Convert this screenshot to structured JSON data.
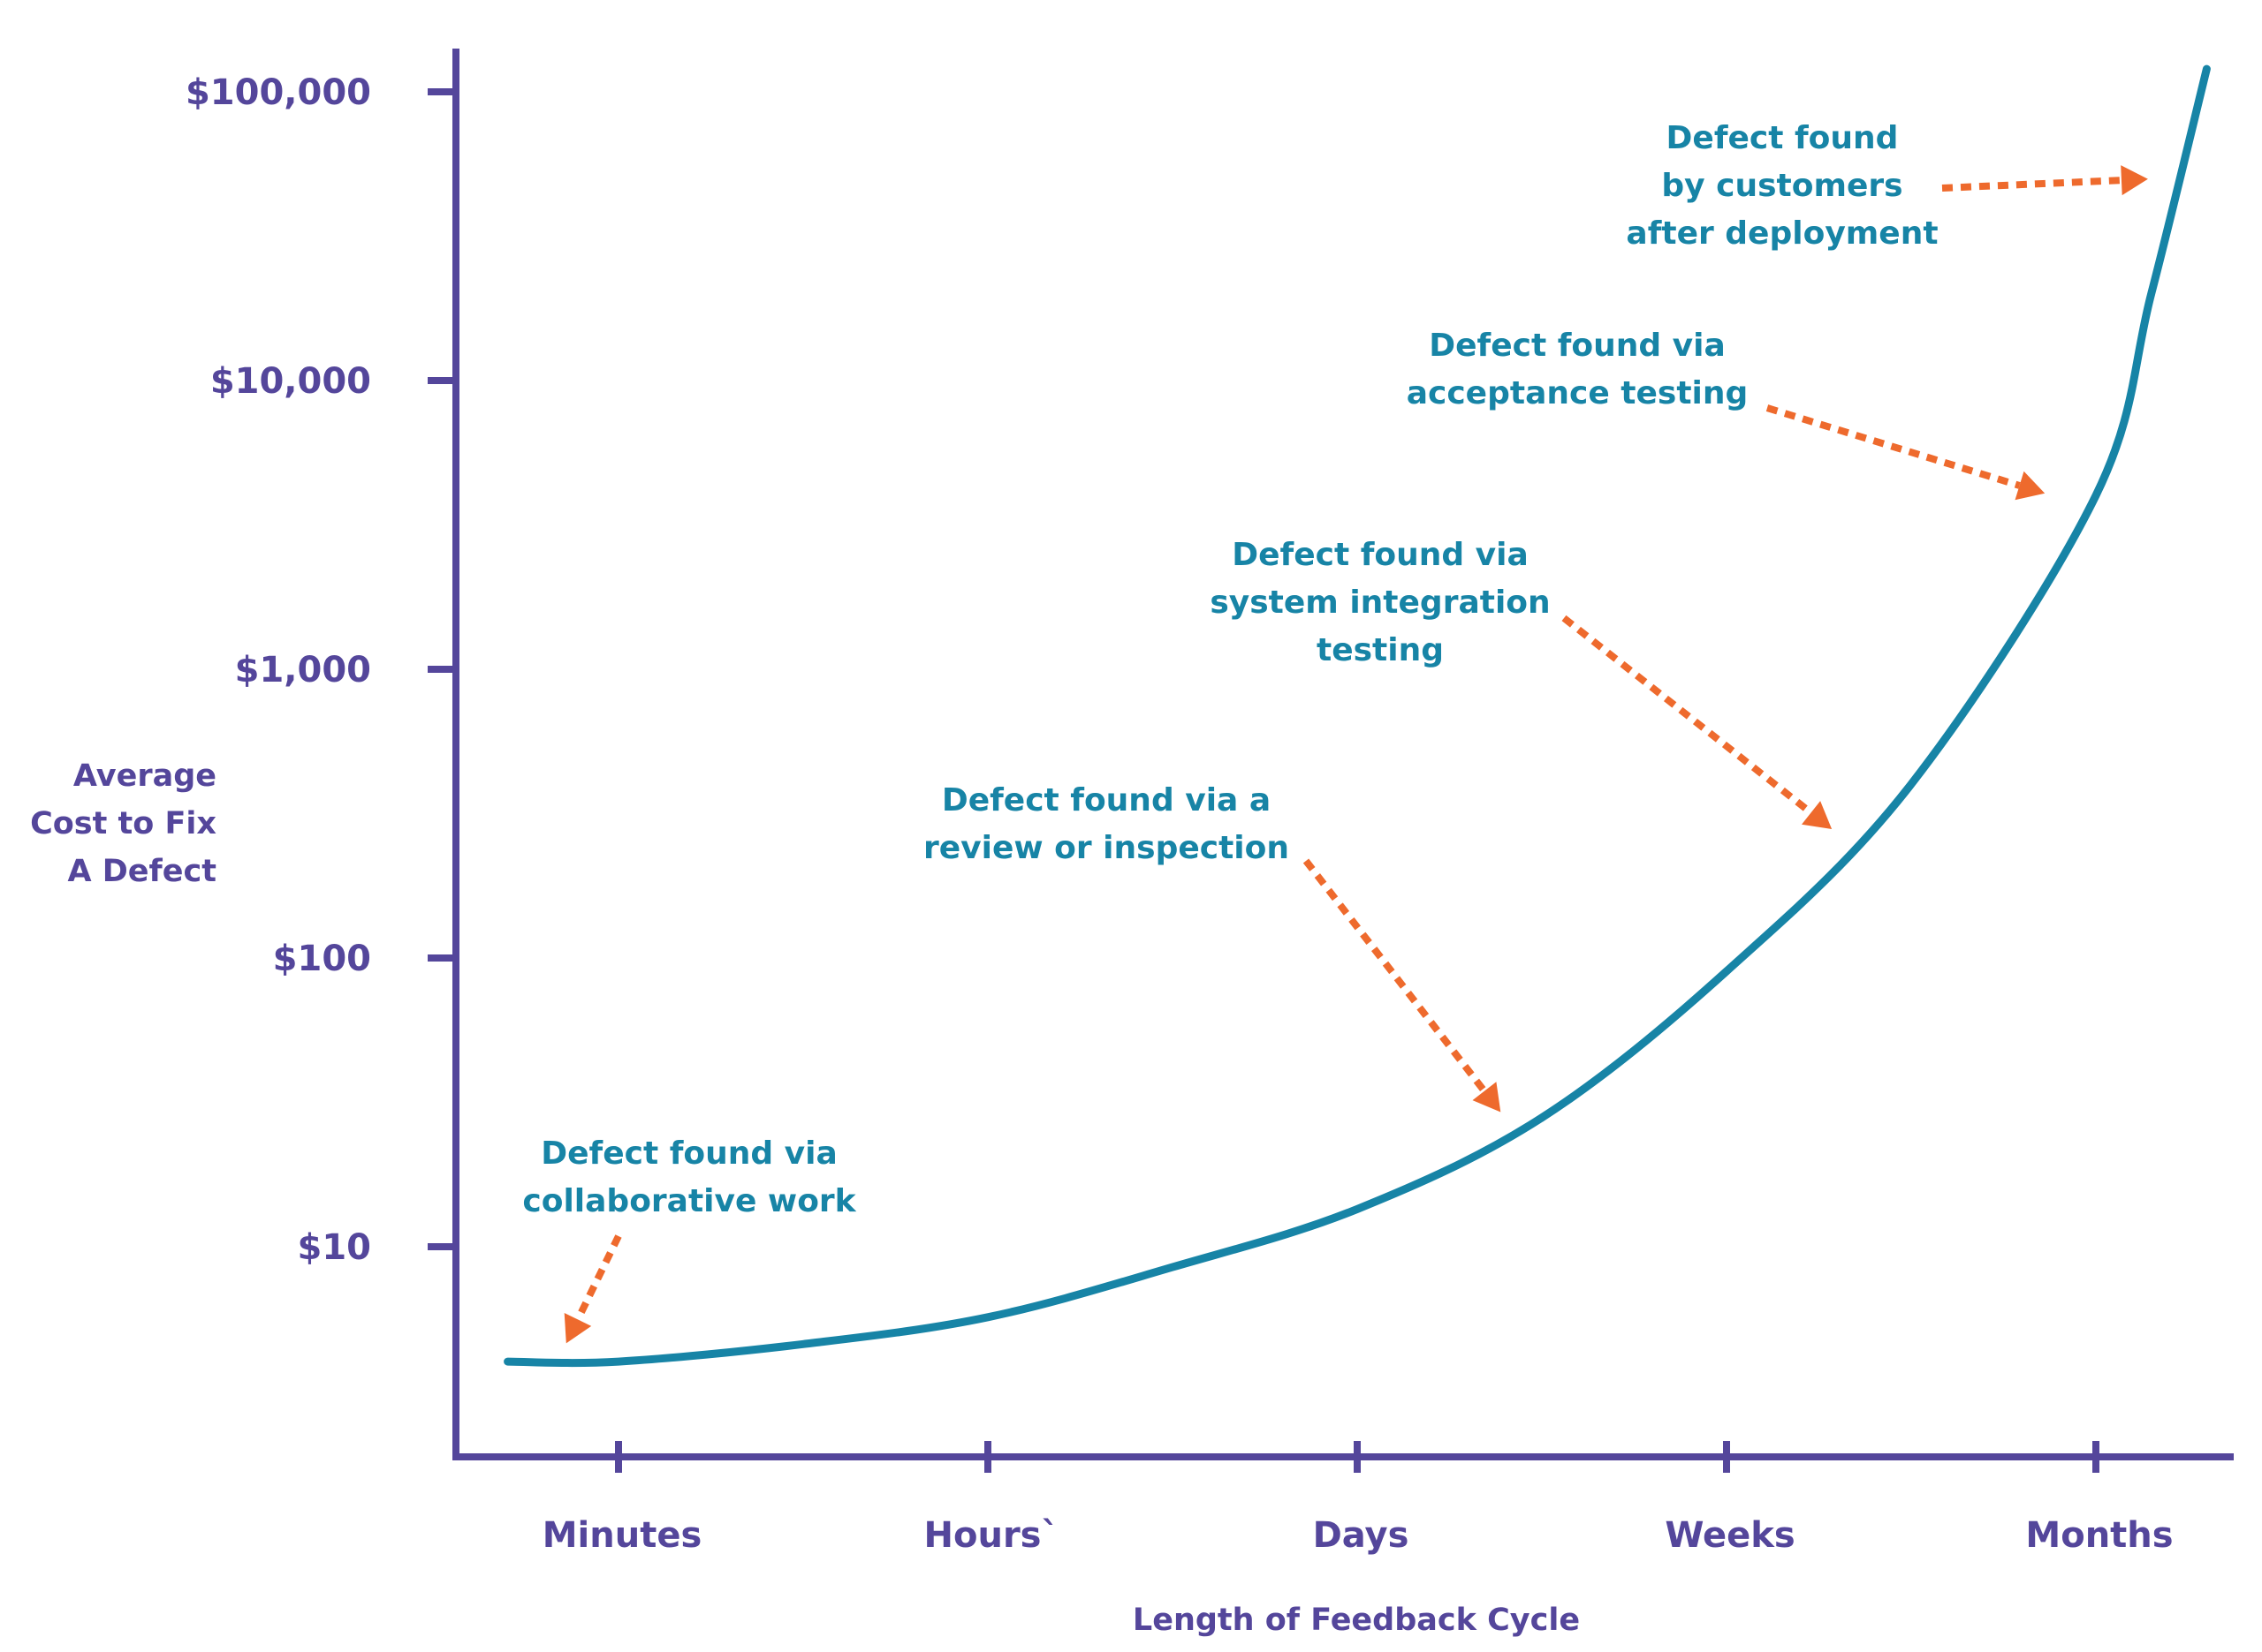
{
  "chart_data": {
    "type": "line",
    "title": "",
    "xlabel": "Length of Feedback Cycle",
    "ylabel_lines": [
      "Average",
      "Cost to Fix",
      "A Defect"
    ],
    "yscale": "log",
    "ylim": [
      2.5,
      130000
    ],
    "x_categories": [
      "Minutes",
      "Hours`",
      "Days",
      "Weeks",
      "Months"
    ],
    "y_ticks": [
      {
        "value": 10,
        "label": "$10"
      },
      {
        "value": 100,
        "label": "$100"
      },
      {
        "value": 1000,
        "label": "$1,000"
      },
      {
        "value": 10000,
        "label": "$10,000"
      },
      {
        "value": 100000,
        "label": "$100,000"
      }
    ],
    "series": [
      {
        "x": [
          -0.3,
          0.0,
          0.5,
          1.0,
          1.5,
          2.0,
          2.5,
          3.0,
          3.5,
          4.0,
          4.15,
          4.3
        ],
        "y": [
          4,
          4,
          4.6,
          5.7,
          8.5,
          13.5,
          28,
          90,
          400,
          4000,
          20000,
          120000
        ]
      }
    ],
    "annotations": [
      {
        "lines": [
          "Defect found via",
          "collaborative work"
        ],
        "x": -0.15,
        "y": 4.4
      },
      {
        "lines": [
          "Defect found via a",
          "review or inspection"
        ],
        "x": 2.4,
        "y": 28
      },
      {
        "lines": [
          "Defect found via",
          "system integration",
          "testing"
        ],
        "x": 3.3,
        "y": 270
      },
      {
        "lines": [
          "Defect found via",
          "acceptance testing"
        ],
        "x": 3.88,
        "y": 4000
      },
      {
        "lines": [
          "Defect found",
          "by customers",
          "after deployment"
        ],
        "x": 4.16,
        "y": 50000
      }
    ],
    "grid": false,
    "colors": {
      "axis": "#54469b",
      "curve": "#1784a6",
      "annotation_text": "#1784a6",
      "arrow": "#ee6a2d"
    }
  }
}
